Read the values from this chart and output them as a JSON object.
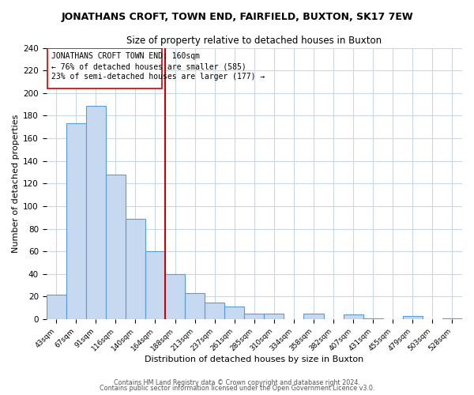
{
  "title": "JONATHANS CROFT, TOWN END, FAIRFIELD, BUXTON, SK17 7EW",
  "subtitle": "Size of property relative to detached houses in Buxton",
  "xlabel": "Distribution of detached houses by size in Buxton",
  "ylabel": "Number of detached properties",
  "bar_labels": [
    "43sqm",
    "67sqm",
    "91sqm",
    "116sqm",
    "140sqm",
    "164sqm",
    "188sqm",
    "213sqm",
    "237sqm",
    "261sqm",
    "285sqm",
    "310sqm",
    "334sqm",
    "358sqm",
    "382sqm",
    "407sqm",
    "431sqm",
    "455sqm",
    "479sqm",
    "503sqm",
    "528sqm"
  ],
  "bar_values": [
    22,
    173,
    189,
    128,
    89,
    60,
    40,
    23,
    15,
    11,
    5,
    5,
    0,
    5,
    0,
    4,
    1,
    0,
    3,
    0,
    1
  ],
  "bar_color": "#c6d9f1",
  "bar_edgecolor": "#5b9bd5",
  "ref_line_x": 5.5,
  "ref_line_label": "JONATHANS CROFT TOWN END: 160sqm",
  "ref_line_smaller_pct": "76%",
  "ref_line_smaller_n": 585,
  "ref_line_larger_pct": "23%",
  "ref_line_larger_n": 177,
  "ref_line_color": "#cc0000",
  "ylim": [
    0,
    240
  ],
  "yticks": [
    0,
    20,
    40,
    60,
    80,
    100,
    120,
    140,
    160,
    180,
    200,
    220,
    240
  ],
  "footer1": "Contains HM Land Registry data © Crown copyright and database right 2024.",
  "footer2": "Contains public sector information licensed under the Open Government Licence v3.0.",
  "background_color": "#ffffff",
  "grid_color": "#c8d8e8"
}
